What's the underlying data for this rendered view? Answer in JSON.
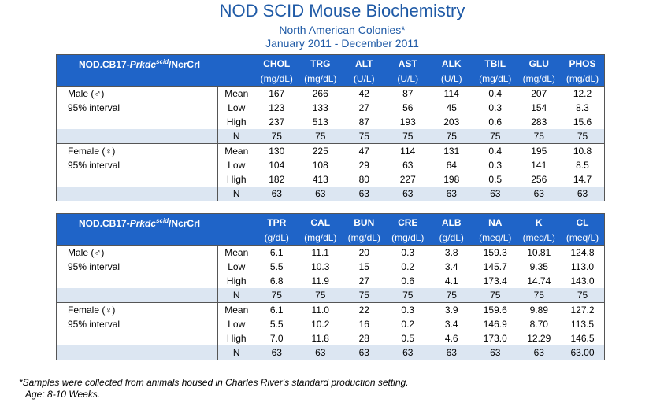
{
  "title": "NOD SCID Mouse Biochemistry",
  "subtitle": "North American Colonies*",
  "date_range": "January 2011 - December 2011",
  "strain": {
    "prefix": "NOD.CB17-",
    "gene": "Prkdc",
    "sup": "scid",
    "suffix": "/NcrCrl"
  },
  "tables": [
    {
      "columns": [
        "CHOL",
        "TRG",
        "ALT",
        "AST",
        "ALK",
        "TBIL",
        "GLU",
        "PHOS"
      ],
      "units": [
        "(mg/dL)",
        "(mg/dL)",
        "(U/L)",
        "(U/L)",
        "(U/L)",
        "(mg/dL)",
        "(mg/dL)",
        "(mg/dL)"
      ],
      "groups": [
        {
          "label": "Male (♂)",
          "interval": "95% interval",
          "rows": [
            {
              "stat": "Mean",
              "values": [
                "167",
                "266",
                "42",
                "87",
                "114",
                "0.4",
                "207",
                "12.2"
              ]
            },
            {
              "stat": "Low",
              "values": [
                "123",
                "133",
                "27",
                "56",
                "45",
                "0.3",
                "154",
                "8.3"
              ]
            },
            {
              "stat": "High",
              "values": [
                "237",
                "513",
                "87",
                "193",
                "203",
                "0.6",
                "283",
                "15.6"
              ]
            },
            {
              "stat": "N",
              "values": [
                "75",
                "75",
                "75",
                "75",
                "75",
                "75",
                "75",
                "75"
              ]
            }
          ]
        },
        {
          "label": "Female (♀)",
          "interval": "95% interval",
          "rows": [
            {
              "stat": "Mean",
              "values": [
                "130",
                "225",
                "47",
                "114",
                "131",
                "0.4",
                "195",
                "10.8"
              ]
            },
            {
              "stat": "Low",
              "values": [
                "104",
                "108",
                "29",
                "63",
                "64",
                "0.3",
                "141",
                "8.5"
              ]
            },
            {
              "stat": "High",
              "values": [
                "182",
                "413",
                "80",
                "227",
                "198",
                "0.5",
                "256",
                "14.7"
              ]
            },
            {
              "stat": "N",
              "values": [
                "63",
                "63",
                "63",
                "63",
                "63",
                "63",
                "63",
                "63"
              ]
            }
          ]
        }
      ]
    },
    {
      "columns": [
        "TPR",
        "CAL",
        "BUN",
        "CRE",
        "ALB",
        "NA",
        "K",
        "CL"
      ],
      "units": [
        "(g/dL)",
        "(mg/dL)",
        "(mg/dL)",
        "(mg/dL)",
        "(g/dL)",
        "(meq/L)",
        "(meq/L)",
        "(meq/L)"
      ],
      "groups": [
        {
          "label": "Male (♂)",
          "interval": "95% interval",
          "rows": [
            {
              "stat": "Mean",
              "values": [
                "6.1",
                "11.1",
                "20",
                "0.3",
                "3.8",
                "159.3",
                "10.81",
                "124.8"
              ]
            },
            {
              "stat": "Low",
              "values": [
                "5.5",
                "10.3",
                "15",
                "0.2",
                "3.4",
                "145.7",
                "9.35",
                "113.0"
              ]
            },
            {
              "stat": "High",
              "values": [
                "6.8",
                "11.9",
                "27",
                "0.6",
                "4.1",
                "173.4",
                "14.74",
                "143.0"
              ]
            },
            {
              "stat": "N",
              "values": [
                "75",
                "75",
                "75",
                "75",
                "75",
                "75",
                "75",
                "75"
              ]
            }
          ]
        },
        {
          "label": "Female (♀)",
          "interval": "95% interval",
          "rows": [
            {
              "stat": "Mean",
              "values": [
                "6.1",
                "11.0",
                "22",
                "0.3",
                "3.9",
                "159.6",
                "9.89",
                "127.2"
              ]
            },
            {
              "stat": "Low",
              "values": [
                "5.5",
                "10.2",
                "16",
                "0.2",
                "3.4",
                "146.9",
                "8.70",
                "113.5"
              ]
            },
            {
              "stat": "High",
              "values": [
                "7.0",
                "11.8",
                "28",
                "0.5",
                "4.6",
                "173.0",
                "12.29",
                "146.5"
              ]
            },
            {
              "stat": "N",
              "values": [
                "63",
                "63",
                "63",
                "63",
                "63",
                "63",
                "63",
                "63.00"
              ]
            }
          ]
        }
      ]
    }
  ],
  "footnote1": "*Samples were collected from animals housed in Charles River's standard production setting.",
  "footnote2": "Age: 8-10 Weeks."
}
